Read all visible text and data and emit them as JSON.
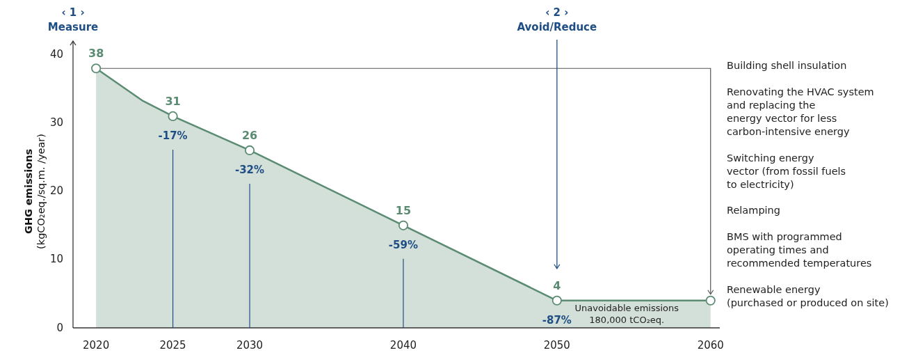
{
  "chart_data": {
    "type": "area",
    "ylabel": "GHG emissions\n(kgCO₂eq./sq.m. /year)",
    "xlim": [
      2018.5,
      2060.6
    ],
    "xticks": [
      2020,
      2025,
      2030,
      2040,
      2050,
      2060
    ],
    "ylim": [
      0,
      42
    ],
    "yticks": [
      0,
      10,
      20,
      30,
      40
    ],
    "grid": false,
    "series": [
      {
        "color": "#5b8c73",
        "marker": "none",
        "x": [
          2020,
          2023,
          2025,
          2030,
          2040,
          2050,
          2060
        ],
        "values": [
          38,
          33.3,
          31,
          26,
          15,
          4,
          4
        ]
      },
      {
        "type": "scatter",
        "marker": "circle",
        "color": "#5b8c73",
        "x": [
          2020,
          2025,
          2030,
          2040,
          2050,
          2060
        ],
        "values": [
          38,
          31,
          26,
          15,
          4,
          4
        ],
        "value_labels": [
          "38",
          "31",
          "26",
          "15",
          "4",
          null
        ]
      }
    ],
    "ref_lines": [
      {
        "axis": "y",
        "value": 38,
        "color": "#555555"
      }
    ],
    "annotations": [
      "‹ 1 ›\nMeasure",
      "‹ 2 ›\nAvoid/Reduce",
      {
        "text": "-17%",
        "x": 2025,
        "y": 31
      },
      {
        "text": "-32%",
        "x": 2030,
        "y": 26
      },
      {
        "text": "-59%",
        "x": 2040,
        "y": 15
      },
      {
        "text": "-87%",
        "x": 2050,
        "y": 4
      },
      "Unavoidable emissions\n180,000 tCO₂eq.",
      "Building shell insulation",
      "Renovating the HVAC system\nand replacing the\nenergy vector for less\ncarbon-intensive energy",
      "Switching energy\nvector (from fossil fuels\nto electricity)",
      "Relamping",
      "BMS with programmed\noperating times and\nrecommended temperatures",
      "Renewable energy\n(purchased or produced on site)"
    ]
  }
}
